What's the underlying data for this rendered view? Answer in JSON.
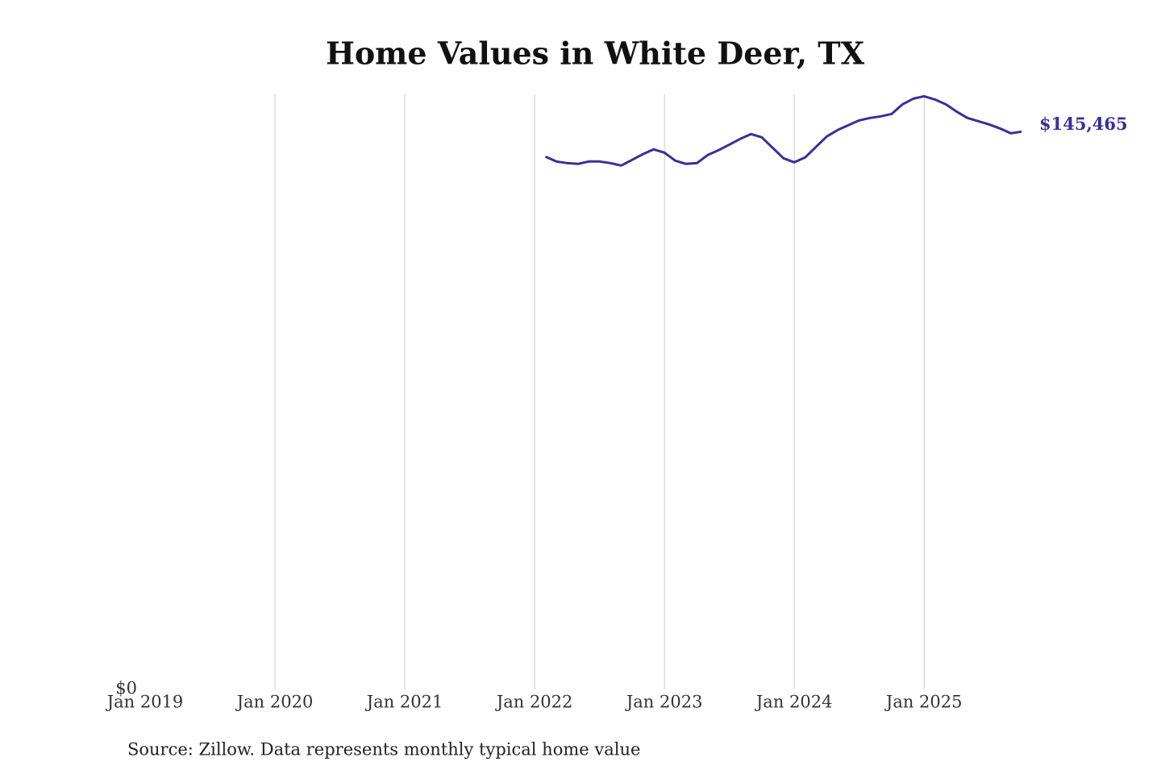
{
  "chart_data": {
    "type": "line",
    "title": "Home Values in White Deer, TX",
    "source": "Source: Zillow. Data represents monthly typical home value",
    "x": [
      "2022-02",
      "2022-03",
      "2022-04",
      "2022-05",
      "2022-06",
      "2022-07",
      "2022-08",
      "2022-09",
      "2022-10",
      "2022-11",
      "2022-12",
      "2023-01",
      "2023-02",
      "2023-03",
      "2023-04",
      "2023-05",
      "2023-06",
      "2023-07",
      "2023-08",
      "2023-09",
      "2023-10",
      "2023-11",
      "2023-12",
      "2024-01",
      "2024-02",
      "2024-03",
      "2024-04",
      "2024-05",
      "2024-06",
      "2024-07",
      "2024-08",
      "2024-09",
      "2024-10",
      "2024-11",
      "2024-12",
      "2025-01",
      "2025-02",
      "2025-03",
      "2025-04",
      "2025-05",
      "2025-06",
      "2025-07",
      "2025-08",
      "2025-09",
      "2025-10"
    ],
    "series": [
      {
        "color": "#36309a",
        "values": [
          138950,
          137700,
          137280,
          137070,
          137700,
          137700,
          137280,
          136650,
          138120,
          139590,
          140850,
          140010,
          137910,
          137070,
          137280,
          139380,
          140640,
          142110,
          143580,
          144840,
          144000,
          141270,
          138540,
          137490,
          138750,
          141480,
          144210,
          145890,
          147150,
          148410,
          149040,
          149460,
          150090,
          152600,
          154070,
          154700,
          153860,
          152600,
          150720,
          149040,
          148200,
          147360,
          146310,
          145050,
          145465
        ],
        "last_value_label": "$145,465"
      }
    ],
    "xlim": [
      "2019-01",
      "2025-10"
    ],
    "xticks": [
      {
        "value": "2019-01",
        "label": "Jan 2019"
      },
      {
        "value": "2020-01",
        "label": "Jan 2020"
      },
      {
        "value": "2021-01",
        "label": "Jan 2021"
      },
      {
        "value": "2022-01",
        "label": "Jan 2022"
      },
      {
        "value": "2023-01",
        "label": "Jan 2023"
      },
      {
        "value": "2024-01",
        "label": "Jan 2024"
      },
      {
        "value": "2025-01",
        "label": "Jan 2025"
      }
    ],
    "ylim": [
      0,
      155000
    ],
    "yticks": [
      {
        "value": 0,
        "label": "$0"
      }
    ],
    "grid": true
  }
}
